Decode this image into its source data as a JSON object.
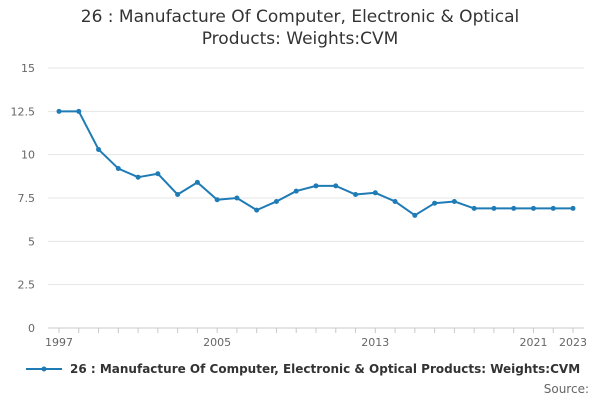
{
  "chart_data": {
    "type": "line",
    "title_lines": [
      "26 : Manufacture Of Computer, Electronic & Optical",
      "Products: Weights:CVM"
    ],
    "xlabel": "",
    "ylabel": "",
    "x": [
      1997,
      1998,
      1999,
      2000,
      2001,
      2002,
      2003,
      2004,
      2005,
      2006,
      2007,
      2008,
      2009,
      2010,
      2011,
      2012,
      2013,
      2014,
      2015,
      2016,
      2017,
      2018,
      2019,
      2020,
      2021,
      2022,
      2023
    ],
    "xlim": [
      1997,
      2023
    ],
    "x_tick_labels": [
      "1997",
      "2005",
      "2013",
      "2021",
      "2023"
    ],
    "ylim": [
      0,
      15
    ],
    "y_ticks": [
      0,
      2.5,
      5,
      7.5,
      10,
      12.5,
      15
    ],
    "y_tick_labels": [
      "0",
      "2.5",
      "5",
      "7.5",
      "10",
      "12.5",
      "15"
    ],
    "grid": "horizontal",
    "legend_position": "bottom",
    "series": [
      {
        "name": "26 : Manufacture Of Computer, Electronic & Optical Products: Weights:CVM",
        "color": "#1f7bb6",
        "values": [
          12.5,
          12.5,
          10.3,
          9.2,
          8.7,
          8.9,
          7.7,
          8.4,
          7.4,
          7.5,
          6.8,
          7.3,
          7.9,
          8.2,
          8.2,
          7.7,
          7.8,
          7.3,
          6.5,
          7.2,
          7.3,
          6.9,
          6.9,
          6.9,
          6.9,
          6.9,
          6.9
        ]
      }
    ]
  },
  "source_label": "Source:"
}
